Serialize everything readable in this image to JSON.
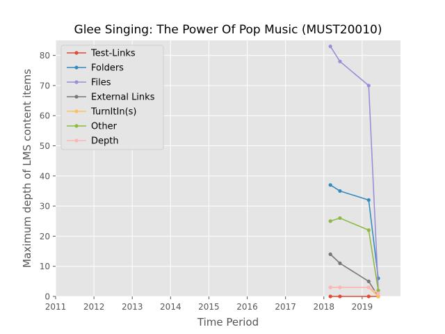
{
  "chart_data": {
    "type": "line",
    "title": "Glee Singing: The Power Of Pop Music (MUST20010)",
    "xlabel": "Time Period",
    "ylabel": "Maximum depth of LMS content items",
    "xlim": [
      2011,
      2020
    ],
    "ylim": [
      0,
      85
    ],
    "xticks": [
      2011,
      2012,
      2013,
      2014,
      2015,
      2016,
      2017,
      2018,
      2019
    ],
    "yticks": [
      0,
      10,
      20,
      30,
      40,
      50,
      60,
      70,
      80
    ],
    "grid": true,
    "legend_position": "top-left",
    "series": [
      {
        "name": "Test-Links",
        "color": "#E24A33",
        "x": [
          2018.17,
          2018.42,
          2019.17,
          2019.42
        ],
        "y": [
          0,
          0,
          0,
          0
        ]
      },
      {
        "name": "Folders",
        "color": "#348ABD",
        "x": [
          2018.17,
          2018.42,
          2019.17,
          2019.42
        ],
        "y": [
          37,
          35,
          32,
          6
        ]
      },
      {
        "name": "Files",
        "color": "#988ED5",
        "x": [
          2018.17,
          2018.42,
          2019.17,
          2019.42
        ],
        "y": [
          83,
          78,
          70,
          2
        ]
      },
      {
        "name": "External Links",
        "color": "#777777",
        "x": [
          2018.17,
          2018.42,
          2019.17,
          2019.42
        ],
        "y": [
          14,
          11,
          5,
          0
        ]
      },
      {
        "name": "TurnItIn(s)",
        "color": "#FBC15E",
        "x": [
          2018.17,
          2018.42,
          2019.17,
          2019.42
        ],
        "y": [
          3,
          3,
          3,
          0
        ]
      },
      {
        "name": "Other",
        "color": "#8EBA42",
        "x": [
          2018.17,
          2018.42,
          2019.17,
          2019.42
        ],
        "y": [
          25,
          26,
          22,
          2
        ]
      },
      {
        "name": "Depth",
        "color": "#FFB5B8",
        "x": [
          2018.17,
          2018.42,
          2019.17,
          2019.42
        ],
        "y": [
          3,
          3,
          3,
          1
        ]
      }
    ]
  }
}
